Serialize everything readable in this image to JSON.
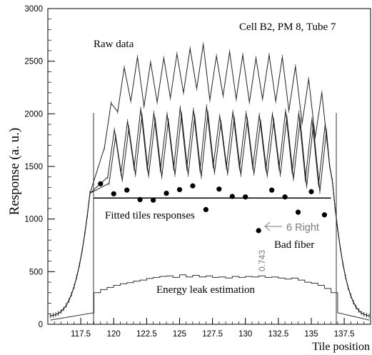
{
  "chart_data": {
    "type": "line",
    "title": "Cell B2,  PM 8,  Tube 7",
    "xlabel": "Tile position",
    "ylabel": "Response  (a. u.)",
    "xlim": [
      115,
      139.5
    ],
    "ylim": [
      0,
      3000
    ],
    "x_ticks": [
      "117.5",
      "120",
      "122.5",
      "125",
      "127.5",
      "130",
      "132.5",
      "135",
      "137.5"
    ],
    "y_ticks": [
      "500",
      "1000",
      "1500",
      "2000",
      "2500",
      "3000"
    ],
    "y_tick_zero": "0",
    "grid": false,
    "legend": "none",
    "annotations": {
      "raw": "Raw data",
      "fitted": "Fitted tiles responses",
      "leak": "Energy leak estimation",
      "bad_fiber": "Bad fiber",
      "right_label": "6 Right",
      "rotated_value": "0.743"
    },
    "fitted_points": {
      "x": [
        119,
        120,
        121,
        122,
        123,
        124,
        125,
        126,
        127,
        128,
        129,
        130,
        131,
        132,
        133,
        134,
        135,
        136
      ],
      "y": [
        1335,
        1240,
        1275,
        1185,
        1180,
        1245,
        1280,
        1315,
        1090,
        1285,
        1215,
        1210,
        890,
        1275,
        1210,
        1065,
        1260,
        1040
      ]
    },
    "fitted_level": 1200,
    "fitted_range": [
      118.5,
      136.5
    ],
    "raw_curve_upper": {
      "baseline": 2050,
      "amplitude": [
        480,
        520,
        560,
        600,
        560,
        520,
        480
      ],
      "peaks_x": [
        119.8,
        120.8,
        121.8,
        122.8,
        123.8,
        124.8,
        125.8,
        126.8,
        127.8,
        128.8,
        129.8,
        130.8,
        131.8,
        132.8,
        133.8,
        134.8,
        135.8
      ],
      "peak_y": [
        2100,
        2440,
        2540,
        2490,
        2530,
        2570,
        2620,
        2660,
        2550,
        2590,
        2560,
        2530,
        2560,
        2540,
        2450,
        2330,
        2200
      ]
    },
    "raw_curve_lower": {
      "peak_y": [
        1850,
        1930,
        2050,
        2010,
        2000,
        2060,
        2040,
        2070,
        1980,
        2020,
        2010,
        1990,
        2000,
        2030,
        2010,
        1950,
        1900
      ],
      "valley_y": [
        1400,
        1430,
        1480,
        1470,
        1460,
        1480,
        1480,
        1460,
        1500,
        1490,
        1480,
        1490,
        1470,
        1480,
        1440,
        1370,
        1320
      ]
    },
    "energy_leak": {
      "x": [
        118.5,
        119,
        119.5,
        120,
        120.5,
        121,
        121.5,
        122,
        122.5,
        123,
        123.5,
        124,
        124.5,
        125,
        125.5,
        126,
        126.5,
        127,
        127.5,
        128,
        128.5,
        129,
        129.5,
        130,
        130.5,
        131,
        131.5,
        132,
        132.5,
        133,
        133.5,
        134,
        134.5,
        135,
        135.5,
        136,
        136.5
      ],
      "y": [
        300,
        330,
        350,
        370,
        385,
        395,
        410,
        420,
        435,
        445,
        455,
        460,
        445,
        470,
        450,
        465,
        450,
        460,
        445,
        450,
        440,
        455,
        445,
        455,
        450,
        460,
        445,
        450,
        440,
        430,
        440,
        420,
        400,
        390,
        370,
        340,
        300
      ]
    }
  }
}
